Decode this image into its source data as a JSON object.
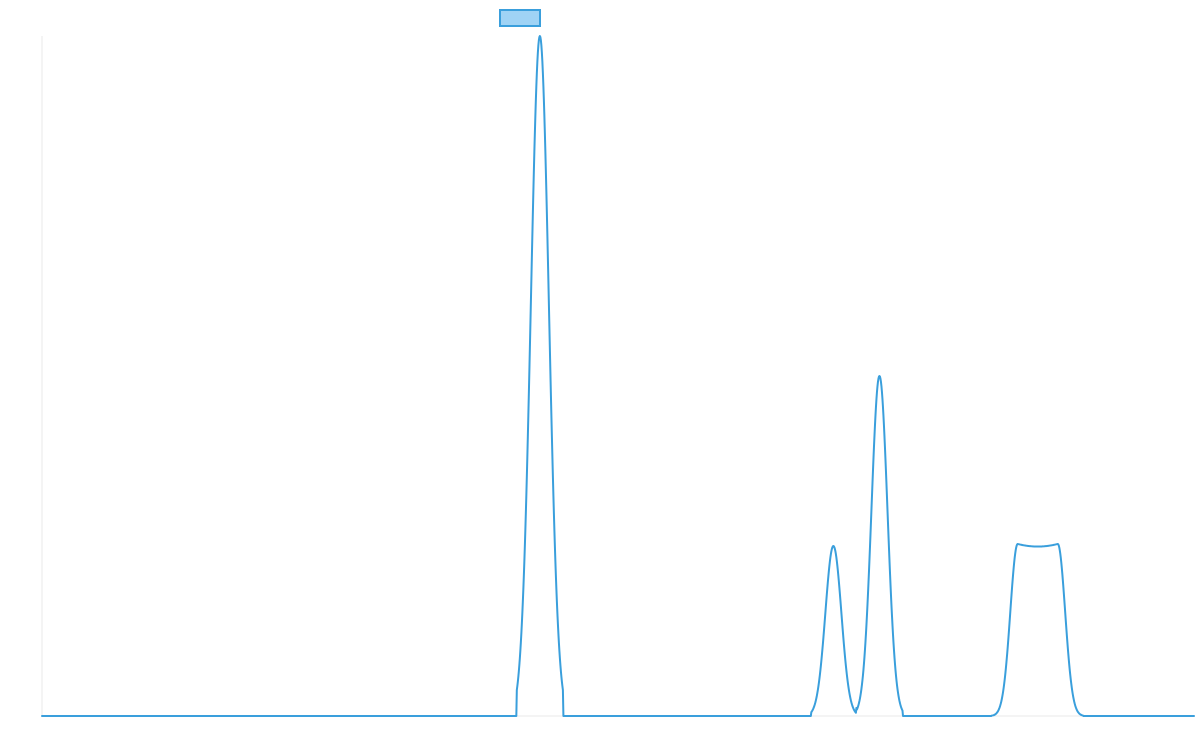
{
  "chart_data": {
    "type": "line",
    "title": "",
    "xlabel": "",
    "ylabel": "",
    "xlim": [
      0,
      1150
    ],
    "ylim": [
      0,
      1
    ],
    "grid": false,
    "legend": {
      "placement": "top-center",
      "entries": [
        {
          "name": "",
          "color": "#3a9fdc"
        }
      ]
    },
    "series": [
      {
        "name": "",
        "color": "#3a9fdc",
        "fill_color": "#9fd3f5",
        "peaks": [
          {
            "center": 497,
            "height": 1.0,
            "width": 9,
            "start": 474,
            "end": 520
          },
          {
            "center": 790,
            "height": 0.25,
            "width": 8,
            "start": 768,
            "end": 813
          },
          {
            "center": 836,
            "height": 0.5,
            "width": 8,
            "start": 813,
            "end": 859
          },
          {
            "center": 994,
            "height": 0.253,
            "width": 40,
            "start": 948,
            "end": 1039,
            "flat": true
          }
        ]
      }
    ]
  }
}
